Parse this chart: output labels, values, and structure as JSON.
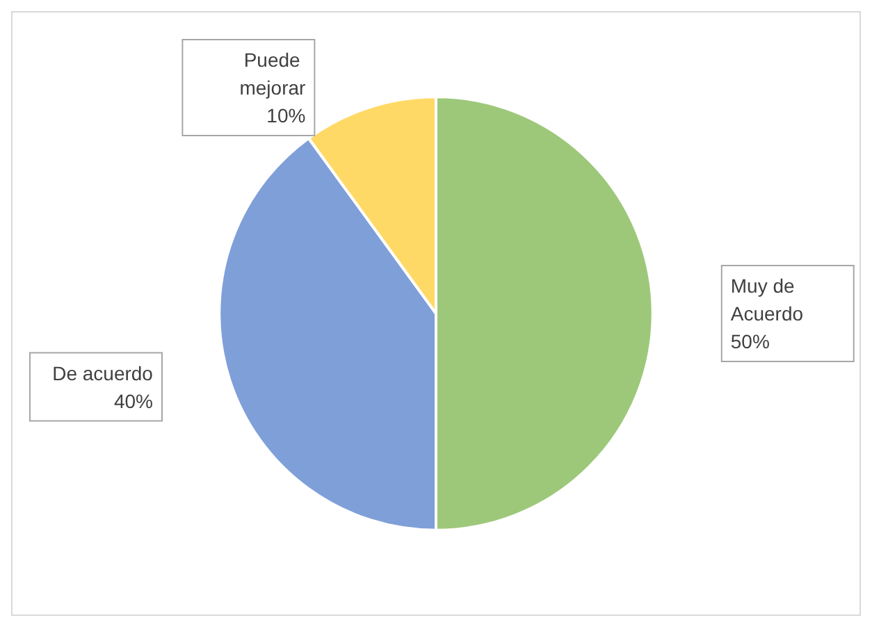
{
  "chart_data": {
    "type": "pie",
    "categories": [
      "Muy de Acuerdo",
      "De acuerdo",
      "Puede mejorar"
    ],
    "values": [
      50,
      40,
      10
    ],
    "value_labels": [
      "50%",
      "40%",
      "10%"
    ],
    "colors": [
      "#9dc87a",
      "#7f9fd8",
      "#ffd966"
    ],
    "legend": false
  }
}
